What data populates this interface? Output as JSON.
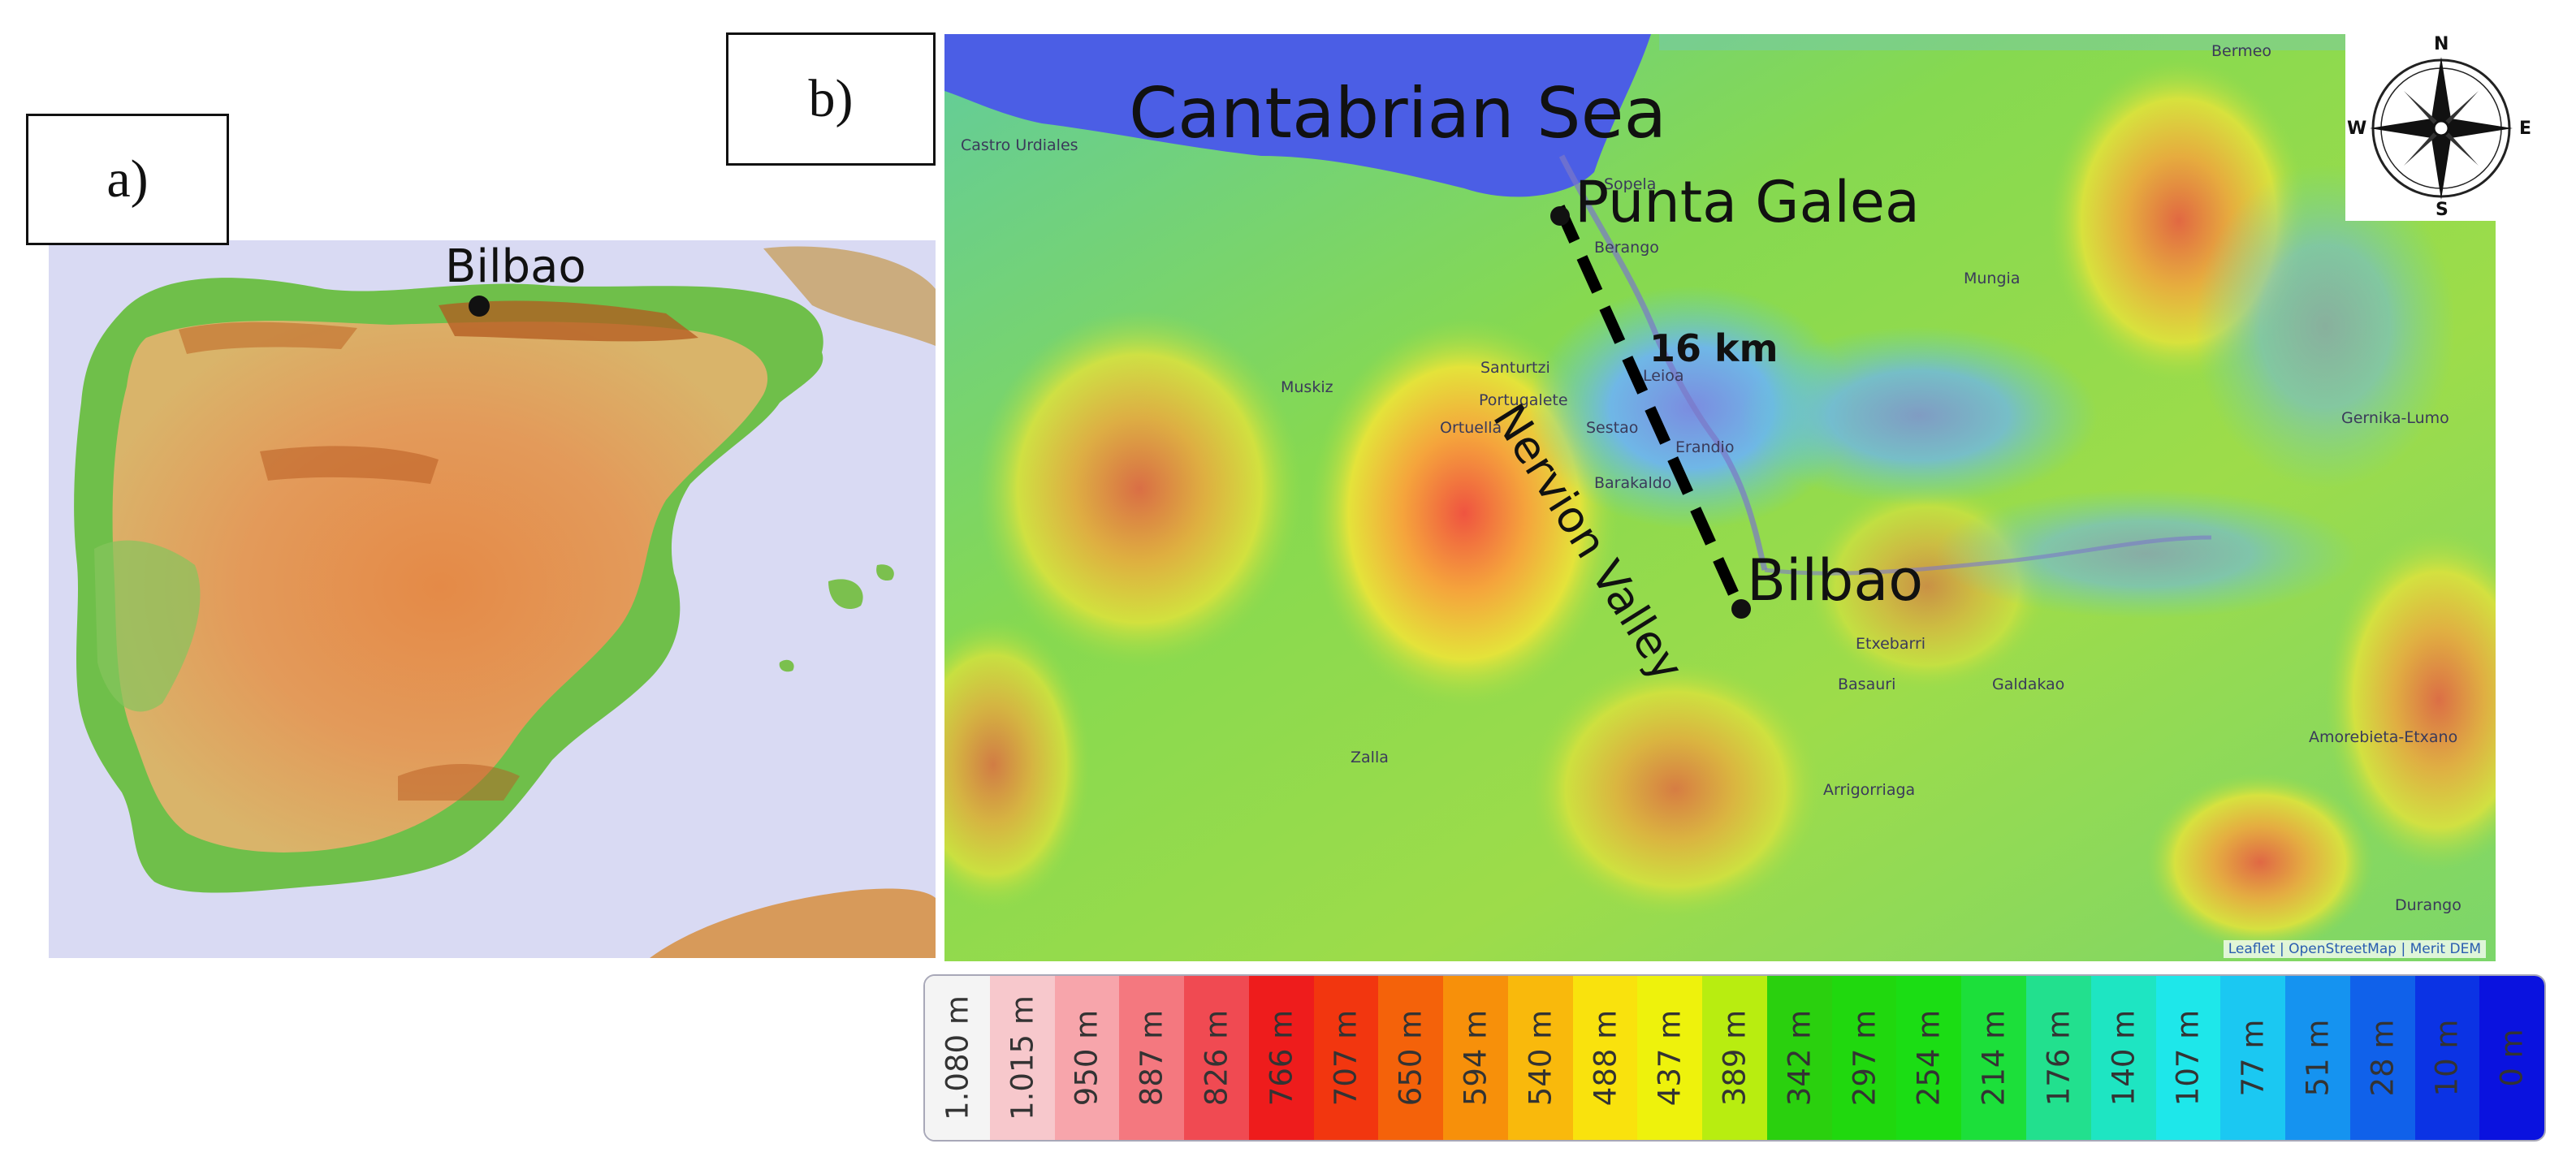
{
  "panel_a": {
    "label": "a)",
    "bilbao_label": "Bilbao"
  },
  "panel_b": {
    "label": "b)",
    "sea_label": "Cantabrian Sea",
    "point_label": "Punta Galea",
    "city_label": "Bilbao",
    "valley_label": "Nervion Valley",
    "distance_label": "16 km",
    "towns": [
      "Castro Urdiales",
      "Sopela",
      "Berango",
      "Bermeo",
      "Mungia",
      "Muskiz",
      "Santurtzi",
      "Portugalete",
      "Leioa",
      "Ortuella",
      "Sestao",
      "Erandio",
      "Barakaldo",
      "Etxebarri",
      "Basauri",
      "Galdakao",
      "Gernika-Lumo",
      "Amorebieta-Etxano",
      "Zalla",
      "Arrigorriaga",
      "Durango"
    ],
    "compass": {
      "icon": "compass-rose-icon",
      "n": "N",
      "s": "S",
      "e": "E",
      "w": "W"
    },
    "attribution": "Leaflet | OpenStreetMap | Merit DEM"
  },
  "legend": {
    "items": [
      {
        "label": "1.080 m",
        "color": "#f4f4f4"
      },
      {
        "label": "1.015 m",
        "color": "#f7c8cc"
      },
      {
        "label": "950 m",
        "color": "#f7a5ab"
      },
      {
        "label": "887 m",
        "color": "#f4787f"
      },
      {
        "label": "826 m",
        "color": "#f04a52"
      },
      {
        "label": "766 m",
        "color": "#ee1c1c"
      },
      {
        "label": "707 m",
        "color": "#f2360f"
      },
      {
        "label": "650 m",
        "color": "#f4620a"
      },
      {
        "label": "594 m",
        "color": "#f7900a"
      },
      {
        "label": "540 m",
        "color": "#f9b90c"
      },
      {
        "label": "488 m",
        "color": "#f9e20d"
      },
      {
        "label": "437 m",
        "color": "#eef20c"
      },
      {
        "label": "389 m",
        "color": "#b8ed10"
      },
      {
        "label": "342 m",
        "color": "#2ad00e"
      },
      {
        "label": "297 m",
        "color": "#20d80e"
      },
      {
        "label": "254 m",
        "color": "#1bdd14"
      },
      {
        "label": "214 m",
        "color": "#1cdf3a"
      },
      {
        "label": "176 m",
        "color": "#22e08e"
      },
      {
        "label": "140 m",
        "color": "#1ee5c2"
      },
      {
        "label": "107 m",
        "color": "#1ee7ea"
      },
      {
        "label": "77 m",
        "color": "#1bc8f2"
      },
      {
        "label": "51 m",
        "color": "#1593f0"
      },
      {
        "label": "28 m",
        "color": "#1061ea"
      },
      {
        "label": "10 m",
        "color": "#0b33e4"
      },
      {
        "label": "0 m",
        "color": "#0a12df"
      }
    ]
  },
  "colors": {
    "sea": "#4b5ee5",
    "land_low": "#5fc8b0",
    "land_mid": "#7ed84e",
    "land_high": "#f2a23a",
    "peak": "#ef5440",
    "marker": "#111111"
  }
}
